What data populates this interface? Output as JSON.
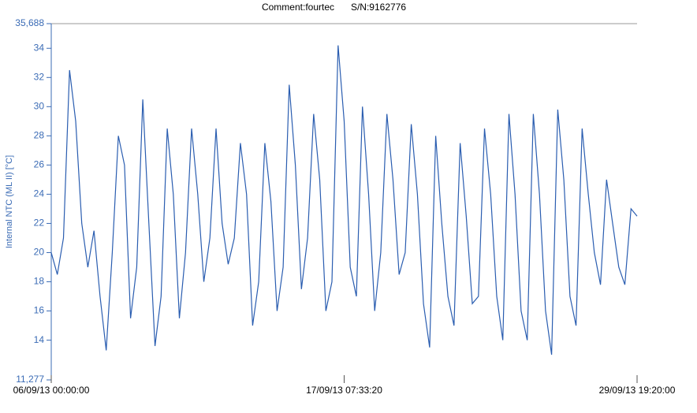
{
  "chart_data": {
    "type": "line",
    "title": "Comment:fourtec",
    "subtitle": "S/N:9162776",
    "y_label": "Internal NTC (ML II) [°C]",
    "categories": [
      "06/09/13 00:00:00",
      null,
      null,
      null,
      null,
      null,
      null,
      null,
      null,
      null,
      null,
      null,
      null,
      null,
      null,
      null,
      null,
      null,
      null,
      null,
      null,
      null,
      null,
      null,
      null,
      null,
      null,
      null,
      null,
      null,
      null,
      null,
      null,
      null,
      null,
      null,
      null,
      null,
      null,
      null,
      null,
      null,
      null,
      null,
      null,
      null,
      null,
      null,
      "17/09/13 07:33:20",
      null,
      null,
      null,
      null,
      null,
      null,
      null,
      null,
      null,
      null,
      null,
      null,
      null,
      null,
      null,
      null,
      null,
      null,
      null,
      null,
      null,
      null,
      null,
      null,
      null,
      null,
      null,
      null,
      null,
      null,
      null,
      null,
      null,
      null,
      null,
      null,
      null,
      null,
      null,
      null,
      null,
      null,
      null,
      null,
      null,
      null,
      null,
      "29/09/13 19:20:00"
    ],
    "series": [
      {
        "name": "Internal NTC (ML II) [°C]",
        "color": "#2a5db0",
        "values": [
          20,
          18.5,
          21,
          32.5,
          29,
          22,
          19,
          21.5,
          17,
          13.3,
          20,
          28,
          26,
          15.5,
          19,
          30.5,
          22,
          13.6,
          17,
          28.5,
          24,
          15.5,
          20,
          28.5,
          24,
          18,
          21,
          28.5,
          22,
          19.2,
          21,
          27.5,
          24,
          15,
          18,
          27.5,
          23.5,
          16,
          19,
          31.5,
          26,
          17.5,
          21,
          29.5,
          25,
          16,
          18,
          34.2,
          29,
          19,
          17,
          30,
          24,
          16,
          20,
          29.5,
          25,
          18.5,
          20,
          28.8,
          24,
          16.5,
          13.5,
          28,
          22,
          17,
          15,
          27.5,
          22.5,
          16.5,
          17,
          28.5,
          24,
          17,
          14,
          29.5,
          24,
          16,
          14,
          29.5,
          24,
          16,
          13,
          29.8,
          25,
          17,
          15,
          28.5,
          24,
          20,
          17.8,
          25,
          22,
          19,
          17.8,
          23,
          22.5
        ]
      }
    ],
    "ylim": [
      11.277,
      35.688
    ],
    "yticks": [
      {
        "value": 11.277,
        "label": "11,277"
      },
      14,
      16,
      18,
      20,
      22,
      24,
      26,
      28,
      30,
      32,
      34,
      {
        "value": 35.688,
        "label": "35,688"
      }
    ]
  }
}
